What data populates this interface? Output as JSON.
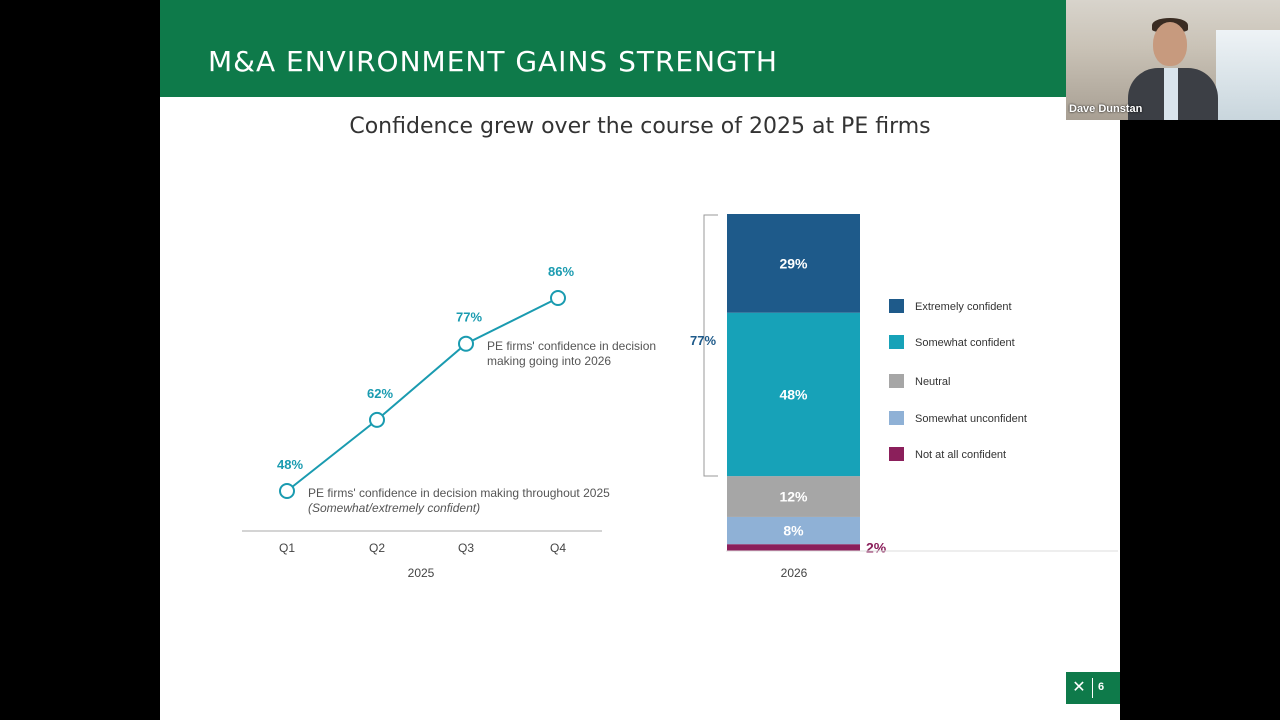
{
  "slide": {
    "title": "M&A ENVIRONMENT GAINS STRENGTH",
    "subtitle": "Confidence grew over the course of 2025 at PE firms",
    "page_number": "6"
  },
  "video": {
    "participant_name": "Dave Dunstan"
  },
  "colors": {
    "banner": "#0e7a4a",
    "line": "#1a9bb0",
    "extremely": "#1e5a8a",
    "somewhat": "#17a2b8",
    "neutral": "#a6a6a6",
    "unconfident": "#8fb1d6",
    "not_at_all": "#8b1f5b"
  },
  "chart_data": [
    {
      "type": "line",
      "categories": [
        "Q1",
        "Q2",
        "Q3",
        "Q4"
      ],
      "values": [
        48,
        62,
        77,
        86
      ],
      "value_labels": [
        "48%",
        "62%",
        "77%",
        "86%"
      ],
      "xlabel": "2025",
      "annotations": {
        "lower_line1": "PE firms' confidence in decision making throughout 2025",
        "lower_line2": "(Somewhat/extremely confident)",
        "upper_line1": "PE firms' confidence in decision",
        "upper_line2": "making going into 2026"
      }
    },
    {
      "type": "bar",
      "stacked": true,
      "categories": [
        "2026"
      ],
      "xlabel": "2026",
      "bracket_label": "77%",
      "series": [
        {
          "name": "Not at all confident",
          "value": 2,
          "label": "2%"
        },
        {
          "name": "Somewhat unconfident",
          "value": 8,
          "label": "8%"
        },
        {
          "name": "Neutral",
          "value": 12,
          "label": "12%"
        },
        {
          "name": "Somewhat confident",
          "value": 48,
          "label": "48%"
        },
        {
          "name": "Extremely confident",
          "value": 29,
          "label": "29%"
        }
      ],
      "legend": [
        "Extremely confident",
        "Somewhat confident",
        "Neutral",
        "Somewhat unconfident",
        "Not at all confident"
      ],
      "legend_position": "right"
    }
  ]
}
